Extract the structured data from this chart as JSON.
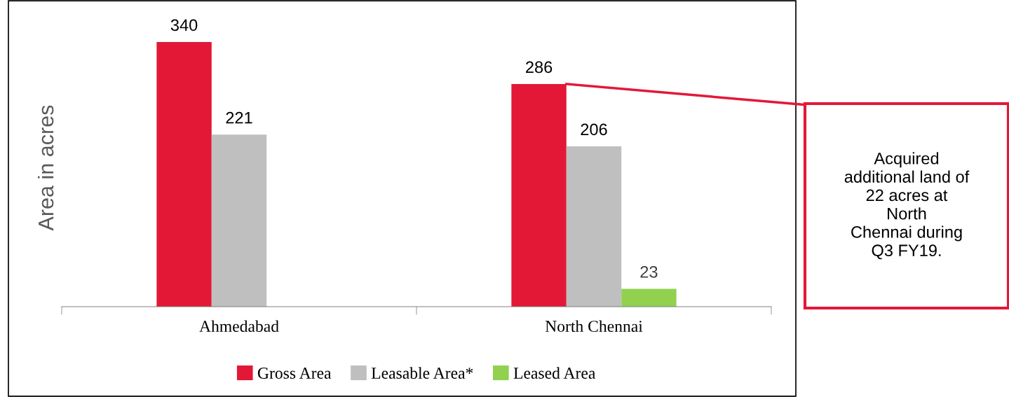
{
  "chart_data": {
    "type": "bar",
    "ylabel": "Area in acres",
    "categories": [
      "Ahmedabad",
      "North Chennai"
    ],
    "series": [
      {
        "name": "Gross Area",
        "color": "#e31837",
        "values": [
          340,
          286
        ]
      },
      {
        "name": "Leasable Area*",
        "color": "#bfbfbf",
        "values": [
          221,
          206
        ]
      },
      {
        "name": "Leased Area",
        "color": "#92d050",
        "values": [
          null,
          23
        ]
      }
    ],
    "data_labels": true,
    "grid": false,
    "legend": "bottom",
    "annotations": [
      "Acquired\nadditional land of\n22 acres at\nNorth\nChennai during\nQ3 FY19."
    ]
  }
}
